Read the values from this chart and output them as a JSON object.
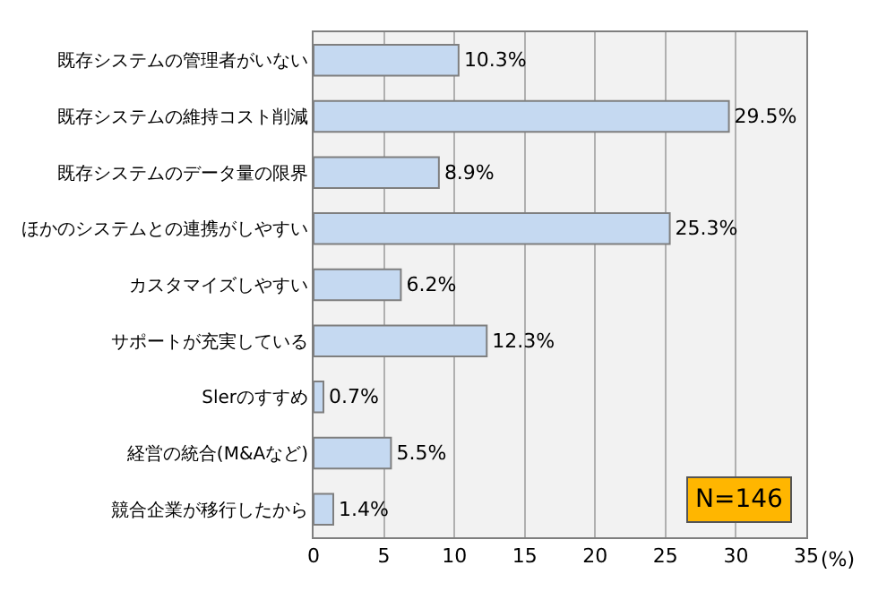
{
  "chart_data": {
    "type": "bar",
    "orientation": "horizontal",
    "categories": [
      "既存システムの管理者がいない",
      "既存システムの維持コスト削減",
      "既存システムのデータ量の限界",
      "ほかのシステムとの連携がしやすい",
      "カスタマイズしやすい",
      "サポートが充実している",
      "Slerのすすめ",
      "経営の統合(M&Aなど)",
      "競合企業が移行したから"
    ],
    "values": [
      10.3,
      29.5,
      8.9,
      25.3,
      6.2,
      12.3,
      0.7,
      5.5,
      1.4
    ],
    "value_labels": [
      "10.3%",
      "29.5%",
      "8.9%",
      "25.3%",
      "6.2%",
      "12.3%",
      "0.7%",
      "5.5%",
      "1.4%"
    ],
    "color": "#c5d9f1",
    "xlim": [
      0,
      35
    ],
    "xticks": [
      0,
      5,
      10,
      15,
      20,
      25,
      30,
      35
    ],
    "xlabel": "(%)",
    "grid": "x",
    "annotations": [
      "N=146"
    ]
  }
}
